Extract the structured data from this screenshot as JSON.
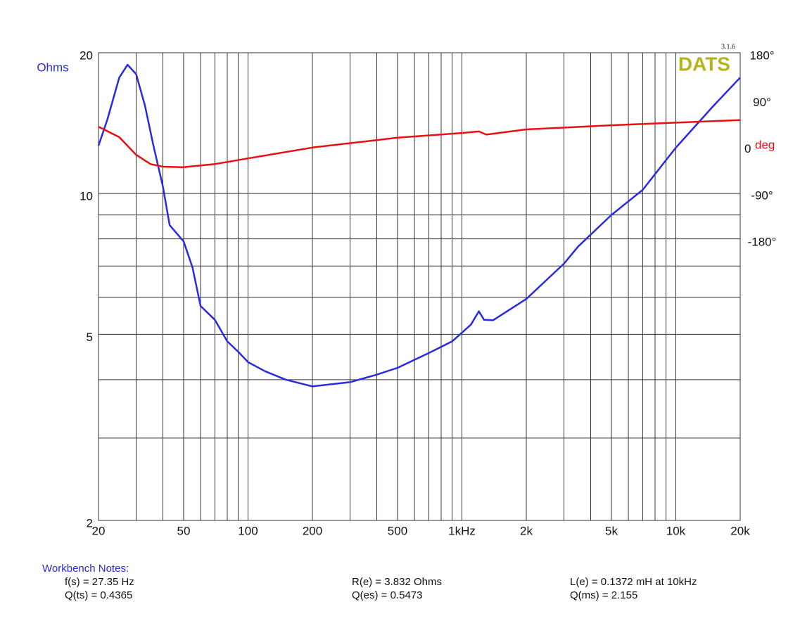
{
  "chart_data": {
    "type": "line",
    "y_label": "Ohms",
    "y2_unit": "deg",
    "logo": "DATS",
    "version": "3.1.6",
    "log_x": true,
    "log_y": true,
    "grid": true,
    "xlim": [
      20,
      20000
    ],
    "xticks": [
      20,
      50,
      100,
      200,
      500,
      {
        "value": 1000,
        "label": "1kHz"
      },
      {
        "value": 2000,
        "label": "2k"
      },
      {
        "value": 5000,
        "label": "5k"
      },
      {
        "value": 10000,
        "label": "10k"
      },
      {
        "value": 20000,
        "label": "20k"
      }
    ],
    "xgrid": [
      20,
      30,
      40,
      50,
      60,
      70,
      80,
      90,
      100,
      200,
      300,
      400,
      500,
      600,
      700,
      800,
      900,
      1000,
      2000,
      3000,
      4000,
      5000,
      6000,
      7000,
      8000,
      9000,
      10000,
      20000
    ],
    "ylim": [
      2,
      20
    ],
    "yticks": [
      2,
      5,
      10,
      20
    ],
    "ygrid": [
      2,
      3,
      4,
      5,
      6,
      7,
      8,
      9,
      10,
      20
    ],
    "y2lim": [
      -723,
      180
    ],
    "y2ticks": [
      {
        "value": 180,
        "label": "180°"
      },
      {
        "value": 90,
        "label": "90°"
      },
      0,
      {
        "value": -90,
        "label": "-90°"
      },
      {
        "value": -180,
        "label": "-180°"
      }
    ],
    "series": [
      {
        "name": "Ohms",
        "color": "#2a2ae0",
        "axis": "y",
        "x": [
          20,
          22,
          25,
          27.35,
          30,
          33,
          36,
          40,
          43,
          50,
          55,
          60,
          70,
          80,
          90,
          100,
          120,
          150,
          200,
          300,
          400,
          500,
          700,
          900,
          1100,
          1200,
          1270,
          1400,
          2000,
          3000,
          3500,
          5000,
          7000,
          10000,
          15000,
          20000
        ],
        "values": [
          12.66,
          14.4,
          17.7,
          18.85,
          18.0,
          15.4,
          12.75,
          10.35,
          8.56,
          7.9,
          6.95,
          5.75,
          5.37,
          4.83,
          4.59,
          4.36,
          4.17,
          4.0,
          3.87,
          3.95,
          4.1,
          4.24,
          4.56,
          4.83,
          5.24,
          5.6,
          5.37,
          5.36,
          5.95,
          7.08,
          7.71,
          9.0,
          10.18,
          12.53,
          15.4,
          17.7
        ]
      },
      {
        "name": "deg",
        "color": "#e81010",
        "axis": "y2",
        "x": [
          20,
          25,
          30,
          35,
          40,
          50,
          70,
          100,
          200,
          500,
          1000,
          1200,
          1300,
          2000,
          5000,
          10000,
          20000
        ],
        "values": [
          37,
          17,
          -17,
          -35,
          -40,
          -41,
          -35,
          -24,
          -3,
          16,
          25,
          28,
          22,
          32,
          40,
          45,
          50
        ]
      }
    ],
    "notes": {
      "title": "Workbench Notes:",
      "items": [
        "f(s) = 27.35 Hz",
        "Q(ts) = 0.4365",
        "R(e) = 3.832 Ohms",
        "Q(es) = 0.5473",
        "L(e) = 0.1372 mH at 10kHz",
        "Q(ms) = 2.155"
      ]
    }
  }
}
